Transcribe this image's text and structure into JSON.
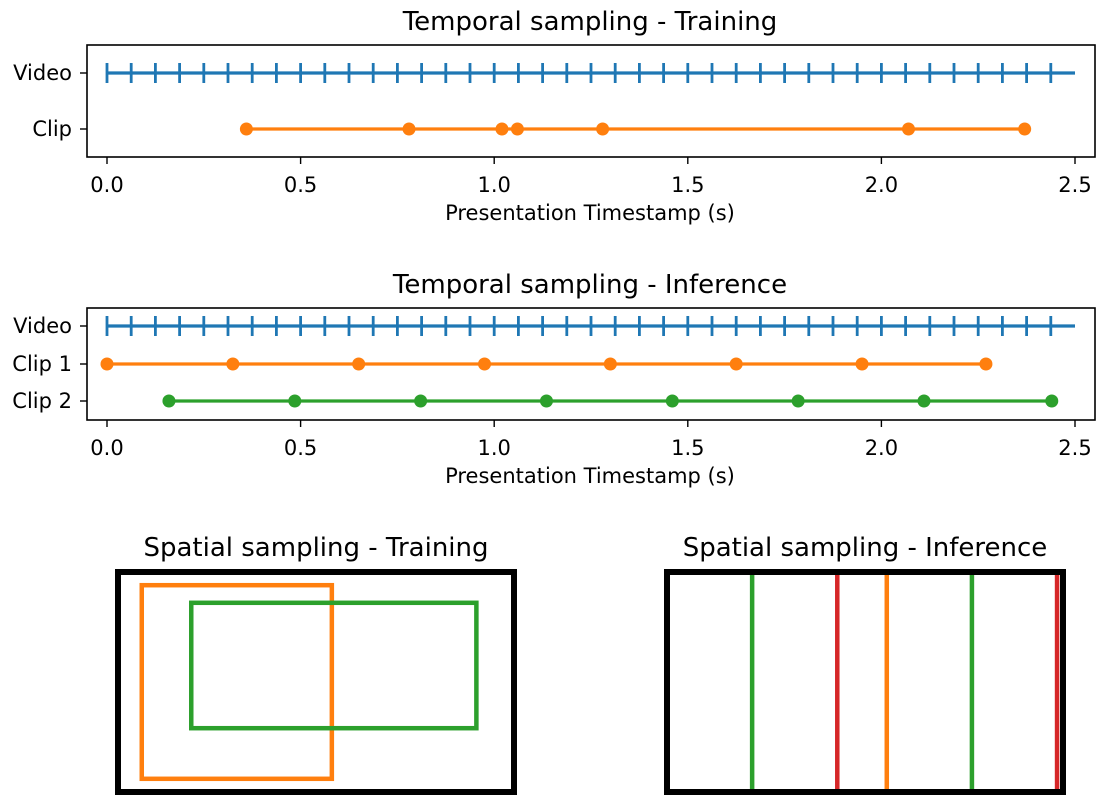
{
  "colors": {
    "video": "#1f77b4",
    "clip1": "#ff7f0e",
    "clip2": "#2ca02c",
    "clip3": "#d62728",
    "frame": "#000000"
  },
  "chart_data": [
    {
      "type": "scatter",
      "title": "Temporal sampling - Training",
      "xlabel": "Presentation Timestamp (s)",
      "ylabel": "",
      "xlim": [
        0.0,
        2.5
      ],
      "xticks": [
        "0.0",
        "0.5",
        "1.0",
        "1.5",
        "2.0",
        "2.5"
      ],
      "rows": [
        {
          "label": "Video",
          "marker": "tick",
          "color": "#1f77b4",
          "line": [
            0.0,
            2.5
          ],
          "x": [
            0.0,
            0.0625,
            0.125,
            0.1875,
            0.25,
            0.3125,
            0.375,
            0.4375,
            0.5,
            0.5625,
            0.625,
            0.6875,
            0.75,
            0.8125,
            0.875,
            0.9375,
            1.0,
            1.0625,
            1.125,
            1.1875,
            1.25,
            1.3125,
            1.375,
            1.4375,
            1.5,
            1.5625,
            1.625,
            1.6875,
            1.75,
            1.8125,
            1.875,
            1.9375,
            2.0,
            2.0625,
            2.125,
            2.1875,
            2.25,
            2.3125,
            2.375,
            2.4375
          ]
        },
        {
          "label": "Clip",
          "marker": "dot",
          "color": "#ff7f0e",
          "line": [
            0.36,
            2.37
          ],
          "x": [
            0.36,
            0.78,
            1.02,
            1.06,
            1.28,
            2.07,
            2.37
          ]
        }
      ]
    },
    {
      "type": "scatter",
      "title": "Temporal sampling - Inference",
      "xlabel": "Presentation Timestamp (s)",
      "ylabel": "",
      "xlim": [
        0.0,
        2.5
      ],
      "xticks": [
        "0.0",
        "0.5",
        "1.0",
        "1.5",
        "2.0",
        "2.5"
      ],
      "rows": [
        {
          "label": "Video",
          "marker": "tick",
          "color": "#1f77b4",
          "line": [
            0.0,
            2.5
          ],
          "x": [
            0.0,
            0.0625,
            0.125,
            0.1875,
            0.25,
            0.3125,
            0.375,
            0.4375,
            0.5,
            0.5625,
            0.625,
            0.6875,
            0.75,
            0.8125,
            0.875,
            0.9375,
            1.0,
            1.0625,
            1.125,
            1.1875,
            1.25,
            1.3125,
            1.375,
            1.4375,
            1.5,
            1.5625,
            1.625,
            1.6875,
            1.75,
            1.8125,
            1.875,
            1.9375,
            2.0,
            2.0625,
            2.125,
            2.1875,
            2.25,
            2.3125,
            2.375,
            2.4375
          ]
        },
        {
          "label": "Clip 1",
          "marker": "dot",
          "color": "#ff7f0e",
          "line": [
            0.0,
            2.27
          ],
          "x": [
            0.0,
            0.325,
            0.65,
            0.975,
            1.3,
            1.625,
            1.95,
            2.27
          ]
        },
        {
          "label": "Clip 2",
          "marker": "dot",
          "color": "#2ca02c",
          "line": [
            0.16,
            2.44
          ],
          "x": [
            0.16,
            0.485,
            0.81,
            1.135,
            1.46,
            1.785,
            2.11,
            2.44
          ]
        }
      ]
    },
    {
      "type": "boxes",
      "title": "Spatial sampling - Training",
      "frame": {
        "x0": 0.0,
        "x1": 1.0,
        "y0": 0.0,
        "y1": 1.0
      },
      "crops": [
        {
          "color": "#ff7f0e",
          "x0": 0.06,
          "x1": 0.54,
          "y0": 0.06,
          "y1": 0.94
        },
        {
          "color": "#2ca02c",
          "x0": 0.185,
          "x1": 0.905,
          "y0": 0.14,
          "y1": 0.71
        }
      ]
    },
    {
      "type": "boxes",
      "title": "Spatial sampling - Inference",
      "frame": {
        "x0": 0.0,
        "x1": 1.0,
        "y0": 0.0,
        "y1": 1.0
      },
      "crops": [
        {
          "color": "#ff7f0e",
          "x0": 0.0,
          "x1": 0.555,
          "y0": 0.0,
          "y1": 1.0
        },
        {
          "color": "#2ca02c",
          "x0": 0.215,
          "x1": 0.77,
          "y0": 0.0,
          "y1": 1.0
        },
        {
          "color": "#d62728",
          "x0": 0.43,
          "x1": 0.985,
          "y0": 0.0,
          "y1": 1.0
        }
      ]
    }
  ]
}
